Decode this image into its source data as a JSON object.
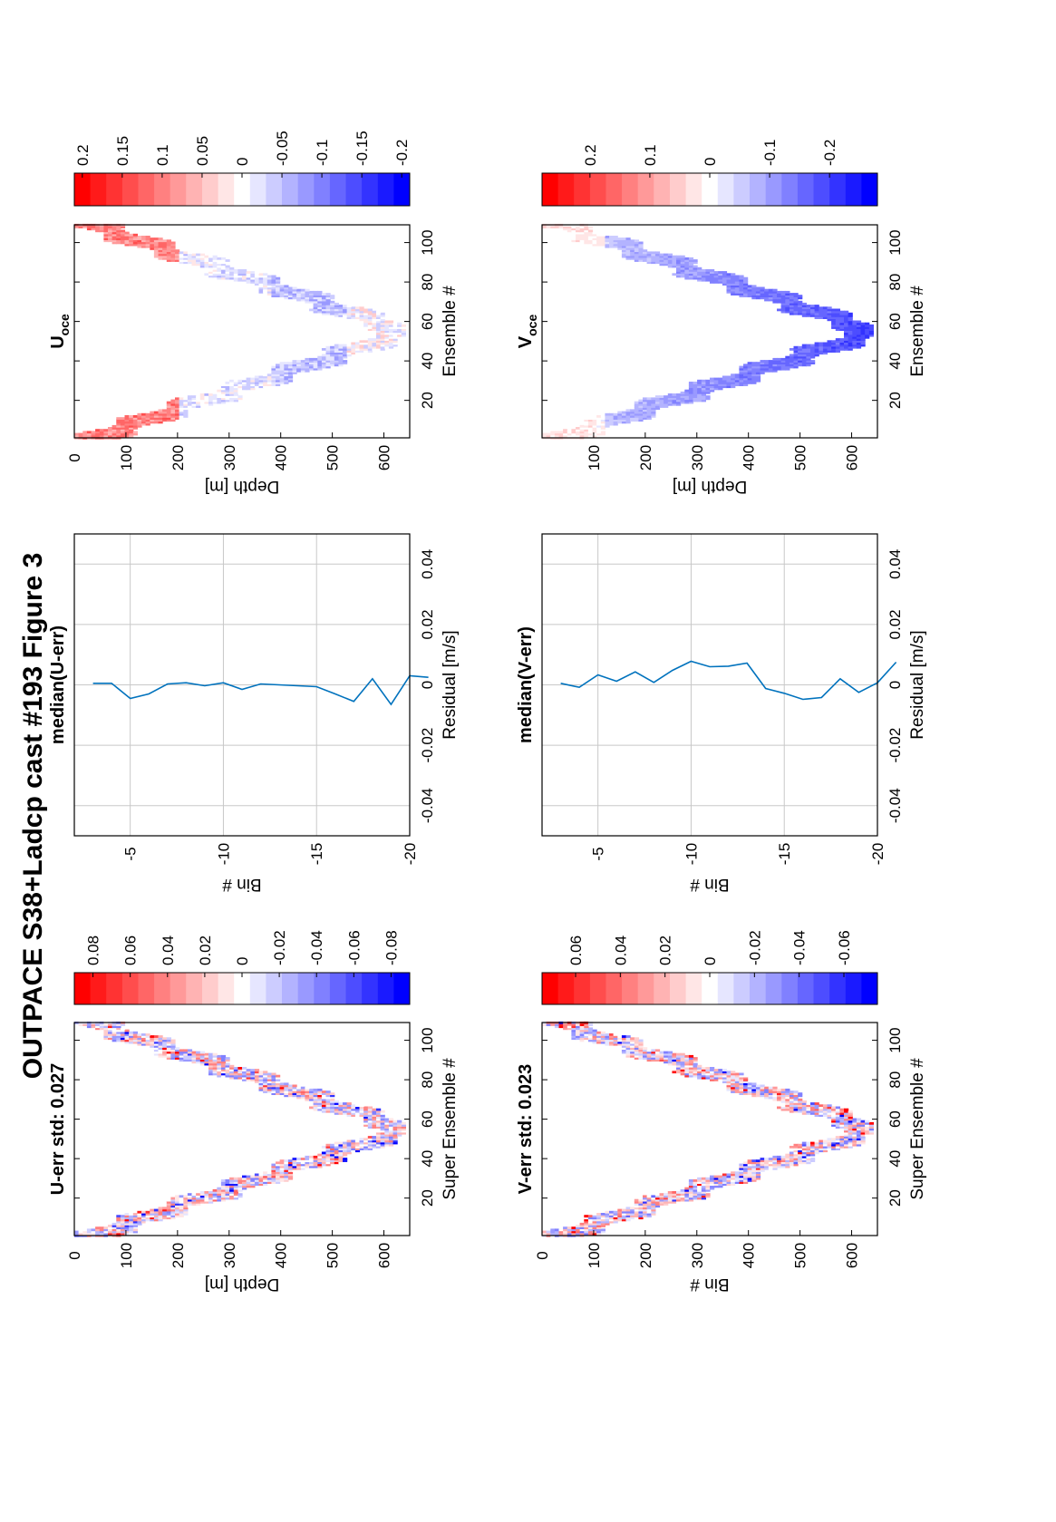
{
  "title": "OUTPACE S38+Ladcp cast #193  Figure 3",
  "colors": {
    "red": "#ff0000",
    "blue": "#0000ff",
    "line": "#0072bd",
    "grid": "#c8c8c8"
  },
  "chart_data": [
    {
      "type": "heatmap",
      "title": "U-err std: 0.027",
      "xlabel": "Super Ensemble #",
      "ylabel": "Depth [m]",
      "xlim": [
        1,
        109
      ],
      "ylim": [
        0,
        650
      ],
      "xticks": [
        "20",
        "40",
        "60",
        "80",
        "100"
      ],
      "yticks": [
        "0",
        "100",
        "200",
        "300",
        "400",
        "500",
        "600"
      ],
      "bottom_depth_m": 640,
      "bottom_ensemble": 55,
      "pattern": "noise",
      "colorbar": {
        "ticks": [
          "0.08",
          "0.06",
          "0.04",
          "0.02",
          "0",
          "-0.02",
          "-0.04",
          "-0.06",
          "-0.08"
        ],
        "range": [
          -0.09,
          0.09
        ]
      }
    },
    {
      "type": "line",
      "title": "median(U-err)",
      "xlabel": "Residual [m/s]",
      "ylabel": "Bin #",
      "xlim": [
        -0.05,
        0.05
      ],
      "ylim": [
        -20,
        -2
      ],
      "xticks": [
        "-0.04",
        "-0.02",
        "0",
        "0.02",
        "0.04"
      ],
      "yticks": [
        "-5",
        "-10",
        "-15",
        "-20"
      ],
      "grid": true,
      "x": [
        0.0005,
        0.0005,
        -0.0045,
        -0.003,
        0.0003,
        0.0007,
        -0.0003,
        0.0007,
        -0.0015,
        0.0003,
        0.0,
        -0.0003,
        -0.0006,
        -0.003,
        -0.0055,
        0.002,
        -0.0065,
        0.003,
        0.0025
      ],
      "y": [
        -3,
        -4,
        -5,
        -6,
        -7,
        -8,
        -9,
        -10,
        -11,
        -12,
        -13,
        -14,
        -15,
        -16,
        -17,
        -18,
        -19,
        -20,
        -21
      ]
    },
    {
      "type": "heatmap",
      "title": "U",
      "title_subscript": "oce",
      "xlabel": "Ensemble #",
      "ylabel": "Depth [m]",
      "xlim": [
        1,
        109
      ],
      "ylim": [
        0,
        650
      ],
      "xticks": [
        "20",
        "40",
        "60",
        "80",
        "100"
      ],
      "yticks": [
        "0",
        "100",
        "200",
        "300",
        "400",
        "500",
        "600"
      ],
      "bottom_depth_m": 640,
      "bottom_ensemble": 55,
      "pattern": "u",
      "colorbar": {
        "ticks": [
          "0.2",
          "0.15",
          "0.1",
          "0.05",
          "0",
          "-0.05",
          "-0.1",
          "-0.15",
          "-0.2"
        ],
        "range": [
          -0.21,
          0.21
        ]
      }
    },
    {
      "type": "heatmap",
      "title": "V-err std: 0.023",
      "xlabel": "Super Ensemble #",
      "ylabel": "Bin #",
      "xlim": [
        1,
        109
      ],
      "ylim": [
        0,
        650
      ],
      "xticks": [
        "20",
        "40",
        "60",
        "80",
        "100"
      ],
      "yticks": [
        "0",
        "100",
        "200",
        "300",
        "400",
        "500",
        "600"
      ],
      "bottom_depth_m": 640,
      "bottom_ensemble": 55,
      "pattern": "noise",
      "colorbar": {
        "ticks": [
          "0.06",
          "0.04",
          "0.02",
          "0",
          "-0.02",
          "-0.04",
          "-0.06"
        ],
        "range": [
          -0.075,
          0.075
        ]
      }
    },
    {
      "type": "line",
      "title": "median(V-err)",
      "xlabel": "Residual [m/s]",
      "ylabel": "Bin #",
      "xlim": [
        -0.05,
        0.05
      ],
      "ylim": [
        -20,
        -2
      ],
      "xticks": [
        "-0.04",
        "-0.02",
        "0",
        "0.02",
        "0.04"
      ],
      "yticks": [
        "-5",
        "-10",
        "-15",
        "-20"
      ],
      "grid": true,
      "x": [
        0.0005,
        -0.0008,
        0.0033,
        0.0012,
        0.0043,
        0.0008,
        0.0048,
        0.0078,
        0.006,
        0.0062,
        0.0072,
        -0.0012,
        -0.0028,
        -0.0048,
        -0.0042,
        0.002,
        -0.0025,
        0.0007,
        0.0075
      ],
      "y": [
        -3,
        -4,
        -5,
        -6,
        -7,
        -8,
        -9,
        -10,
        -11,
        -12,
        -13,
        -14,
        -15,
        -16,
        -17,
        -18,
        -19,
        -20,
        -21
      ]
    },
    {
      "type": "heatmap",
      "title": "V",
      "title_subscript": "oce",
      "xlabel": "Ensemble #",
      "ylabel": "Depth [m]",
      "xlim": [
        1,
        109
      ],
      "ylim": [
        0,
        650
      ],
      "xticks": [
        "20",
        "40",
        "60",
        "80",
        "100"
      ],
      "yticks": [
        "100",
        "200",
        "300",
        "400",
        "500",
        "600"
      ],
      "bottom_depth_m": 640,
      "bottom_ensemble": 55,
      "pattern": "v",
      "colorbar": {
        "ticks": [
          "0.2",
          "0.1",
          "0",
          "-0.1",
          "-0.2"
        ],
        "range": [
          -0.28,
          0.28
        ]
      }
    }
  ]
}
